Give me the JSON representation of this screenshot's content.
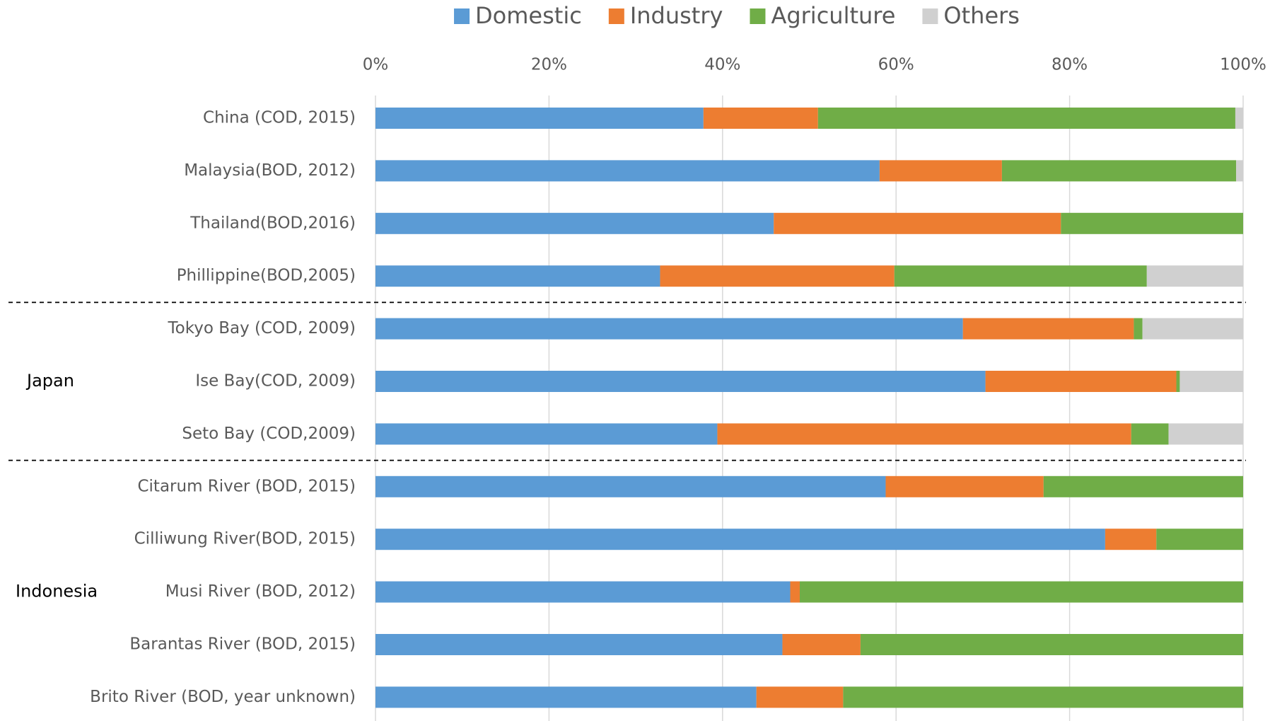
{
  "chart_data": {
    "type": "stacked_barh",
    "categories": [
      "China (COD, 2015)",
      "Malaysia(BOD, 2012)",
      "Thailand(BOD,2016)",
      "Phillippine(BOD,2005)",
      "Tokyo Bay (COD, 2009)",
      "Ise Bay(COD, 2009)",
      "Seto Bay (COD,2009)",
      "Citarum River (BOD, 2015)",
      "Cilliwung River(BOD, 2015)",
      "Musi River (BOD, 2012)",
      "Barantas River (BOD, 2015)",
      "Brito River (BOD, year  unknown)"
    ],
    "category_groups": [
      null,
      null,
      null,
      null,
      "Japan",
      "Japan",
      "Japan",
      "Indonesia",
      "Indonesia",
      "Indonesia",
      "Indonesia",
      "Indonesia"
    ],
    "series": [
      {
        "name": "Domestic",
        "color": "#5b9bd5",
        "values": [
          37.8,
          58.1,
          45.9,
          32.8,
          67.7,
          70.3,
          39.4,
          58.8,
          84.1,
          47.8,
          46.9,
          43.9
        ]
      },
      {
        "name": "Industry",
        "color": "#ed7d31",
        "values": [
          13.2,
          14.1,
          33.1,
          27.0,
          19.7,
          22.0,
          47.7,
          18.2,
          5.9,
          1.1,
          9.0,
          10.0
        ]
      },
      {
        "name": "Agriculture",
        "color": "#70ad47",
        "values": [
          48.1,
          27.0,
          21.0,
          29.1,
          1.0,
          0.4,
          4.3,
          23.0,
          10.0,
          51.1,
          44.1,
          46.1
        ]
      },
      {
        "name": "Others",
        "color": "#d0d0d0",
        "values": [
          0.9,
          0.8,
          0,
          11.1,
          11.6,
          7.3,
          8.6,
          0,
          0,
          0,
          0,
          0
        ]
      }
    ],
    "xlim": [
      0,
      100
    ],
    "xticks": [
      {
        "value": 0,
        "label": "0%"
      },
      {
        "value": 20,
        "label": "20%"
      },
      {
        "value": 40,
        "label": "40%"
      },
      {
        "value": 60,
        "label": "60%"
      },
      {
        "value": 80,
        "label": "80%"
      },
      {
        "value": 100,
        "label": "100%"
      }
    ],
    "grid": true,
    "legend": "top"
  }
}
